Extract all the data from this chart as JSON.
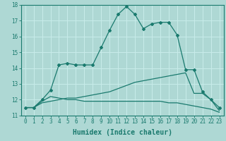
{
  "xlabel": "Humidex (Indice chaleur)",
  "background_color": "#aed8d4",
  "grid_color": "#c8ecea",
  "line_color": "#1a7a6e",
  "x_values": [
    0,
    1,
    2,
    3,
    4,
    5,
    6,
    7,
    8,
    9,
    10,
    11,
    12,
    13,
    14,
    15,
    16,
    17,
    18,
    19,
    20,
    21,
    22,
    23
  ],
  "line1": [
    11.5,
    11.5,
    12.0,
    12.6,
    14.2,
    14.3,
    14.2,
    14.2,
    14.2,
    15.3,
    16.4,
    17.4,
    17.9,
    17.4,
    16.5,
    16.8,
    16.9,
    16.9,
    16.1,
    13.9,
    13.9,
    12.5,
    12.0,
    11.5
  ],
  "line2": [
    11.5,
    11.5,
    11.9,
    12.2,
    12.1,
    12.0,
    12.0,
    11.9,
    11.9,
    11.9,
    11.9,
    11.9,
    11.9,
    11.9,
    11.9,
    11.9,
    11.9,
    11.8,
    11.8,
    11.7,
    11.6,
    11.5,
    11.4,
    11.2
  ],
  "line3": [
    11.5,
    11.5,
    11.8,
    11.9,
    12.0,
    12.1,
    12.1,
    12.2,
    12.3,
    12.4,
    12.5,
    12.7,
    12.9,
    13.1,
    13.2,
    13.3,
    13.4,
    13.5,
    13.6,
    13.7,
    12.4,
    12.4,
    12.0,
    11.3
  ],
  "ylim": [
    11,
    18
  ],
  "xlim": [
    -0.5,
    23.5
  ],
  "yticks": [
    11,
    12,
    13,
    14,
    15,
    16,
    17,
    18
  ],
  "xticks": [
    0,
    1,
    2,
    3,
    4,
    5,
    6,
    7,
    8,
    9,
    10,
    11,
    12,
    13,
    14,
    15,
    16,
    17,
    18,
    19,
    20,
    21,
    22,
    23
  ],
  "tick_fontsize": 5.5,
  "xlabel_fontsize": 7.0
}
